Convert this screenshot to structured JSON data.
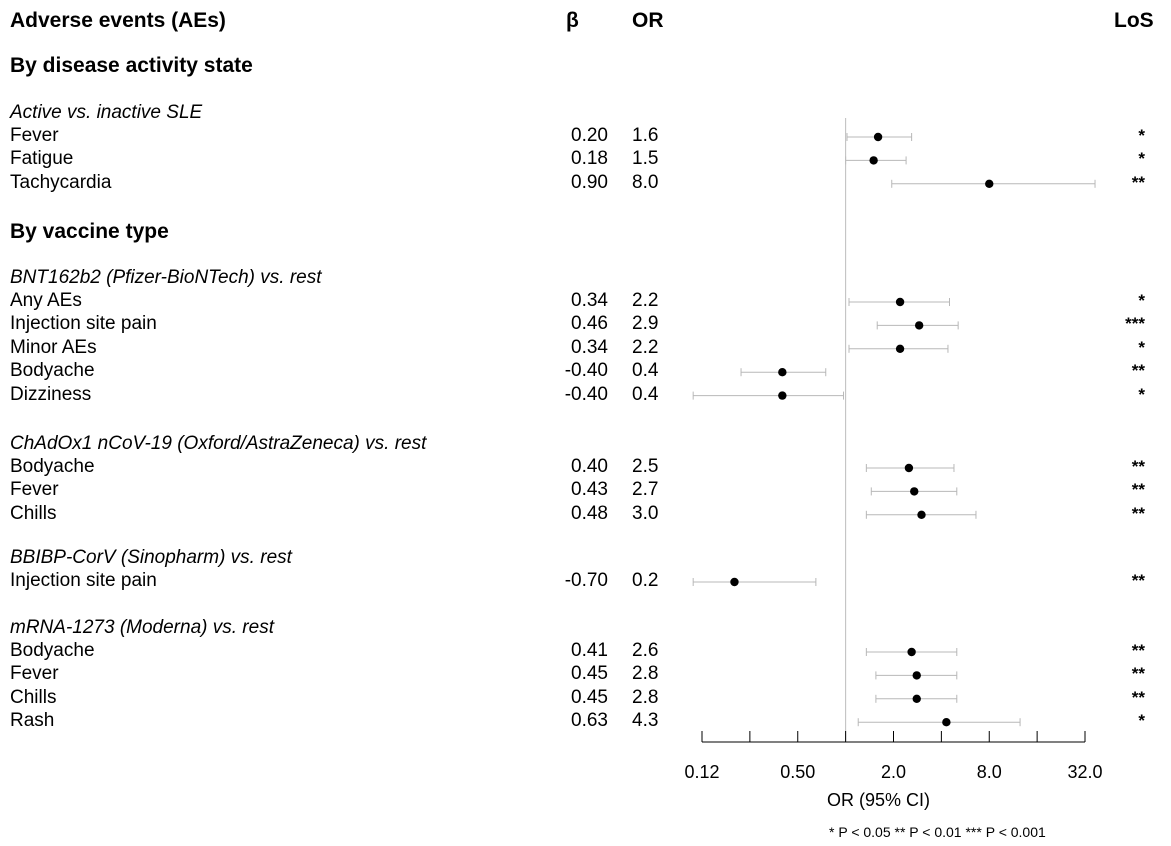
{
  "chart_data": {
    "type": "forest",
    "headers": {
      "label": "Adverse events (AEs)",
      "beta": "β",
      "or": "OR",
      "los": "LoS"
    },
    "xlabel": "OR (95% CI)",
    "x_scale": "log2",
    "xlim": [
      0.125,
      32
    ],
    "x_ticks": [
      0.125,
      0.25,
      0.5,
      1,
      2,
      4,
      8,
      16,
      32
    ],
    "x_tick_labels": [
      {
        "value": 0.125,
        "label": "0.12"
      },
      {
        "value": 0.5,
        "label": "0.50"
      },
      {
        "value": 2,
        "label": "2.0"
      },
      {
        "value": 8,
        "label": "8.0"
      },
      {
        "value": 32,
        "label": "32.0"
      }
    ],
    "reference_line": 1,
    "significance_note": "* P < 0.05    ** P < 0.01    *** P < 0.001",
    "sections": [
      {
        "title": "By disease activity state",
        "groups": [
          {
            "name": "Active vs. inactive SLE",
            "rows": [
              {
                "label": "Fever",
                "beta": "0.20",
                "or": "1.6",
                "or_value": 1.6,
                "ci": [
                  1.02,
                  2.6
                ],
                "los": "*"
              },
              {
                "label": "Fatigue",
                "beta": "0.18",
                "or": "1.5",
                "or_value": 1.5,
                "ci": [
                  1.0,
                  2.4
                ],
                "los": "*"
              },
              {
                "label": "Tachycardia",
                "beta": "0.90",
                "or": "8.0",
                "or_value": 8.0,
                "ci": [
                  1.95,
                  37.0
                ],
                "los": "**"
              }
            ]
          }
        ]
      },
      {
        "title": "By vaccine type",
        "groups": [
          {
            "name": "BNT162b2 (Pfizer-BioNTech) vs. rest",
            "rows": [
              {
                "label": "Any AEs",
                "beta": "0.34",
                "or": "2.2",
                "or_value": 2.2,
                "ci": [
                  1.05,
                  4.5
                ],
                "los": "*"
              },
              {
                "label": "Injection site pain",
                "beta": "0.46",
                "or": "2.9",
                "or_value": 2.9,
                "ci": [
                  1.58,
                  5.1
                ],
                "los": "***"
              },
              {
                "label": "Minor AEs",
                "beta": "0.34",
                "or": "2.2",
                "or_value": 2.2,
                "ci": [
                  1.05,
                  4.4
                ],
                "los": "*"
              },
              {
                "label": "Bodyache",
                "beta": "-0.40",
                "or": "0.4",
                "or_value": 0.4,
                "ci": [
                  0.22,
                  0.75
                ],
                "los": "**"
              },
              {
                "label": "Dizziness",
                "beta": "-0.40",
                "or": "0.4",
                "or_value": 0.4,
                "ci": [
                  0.11,
                  0.97
                ],
                "los": "*"
              }
            ]
          },
          {
            "name": "ChAdOx1 nCoV-19 (Oxford/AstraZeneca) vs. rest",
            "rows": [
              {
                "label": "Bodyache",
                "beta": "0.40",
                "or": "2.5",
                "or_value": 2.5,
                "ci": [
                  1.35,
                  4.8
                ],
                "los": "**"
              },
              {
                "label": "Fever",
                "beta": "0.43",
                "or": "2.7",
                "or_value": 2.7,
                "ci": [
                  1.45,
                  5.0
                ],
                "los": "**"
              },
              {
                "label": "Chills",
                "beta": "0.48",
                "or": "3.0",
                "or_value": 3.0,
                "ci": [
                  1.35,
                  6.6
                ],
                "los": "**"
              }
            ]
          },
          {
            "name": "BBIBP-CorV (Sinopharm) vs. rest",
            "rows": [
              {
                "label": "Injection site pain",
                "beta": "-0.70",
                "or": "0.2",
                "or_value": 0.2,
                "ci": [
                  0.11,
                  0.65
                ],
                "los": "**"
              }
            ]
          },
          {
            "name": "mRNA-1273 (Moderna) vs. rest",
            "rows": [
              {
                "label": "Bodyache",
                "beta": "0.41",
                "or": "2.6",
                "or_value": 2.6,
                "ci": [
                  1.35,
                  5.0
                ],
                "los": "**"
              },
              {
                "label": "Fever",
                "beta": "0.45",
                "or": "2.8",
                "or_value": 2.8,
                "ci": [
                  1.55,
                  5.0
                ],
                "los": "**"
              },
              {
                "label": "Chills",
                "beta": "0.45",
                "or": "2.8",
                "or_value": 2.8,
                "ci": [
                  1.55,
                  5.0
                ],
                "los": "**"
              },
              {
                "label": "Rash",
                "beta": "0.63",
                "or": "4.3",
                "or_value": 4.3,
                "ci": [
                  1.2,
                  12.5
                ],
                "los": "*"
              }
            ]
          }
        ]
      }
    ]
  }
}
